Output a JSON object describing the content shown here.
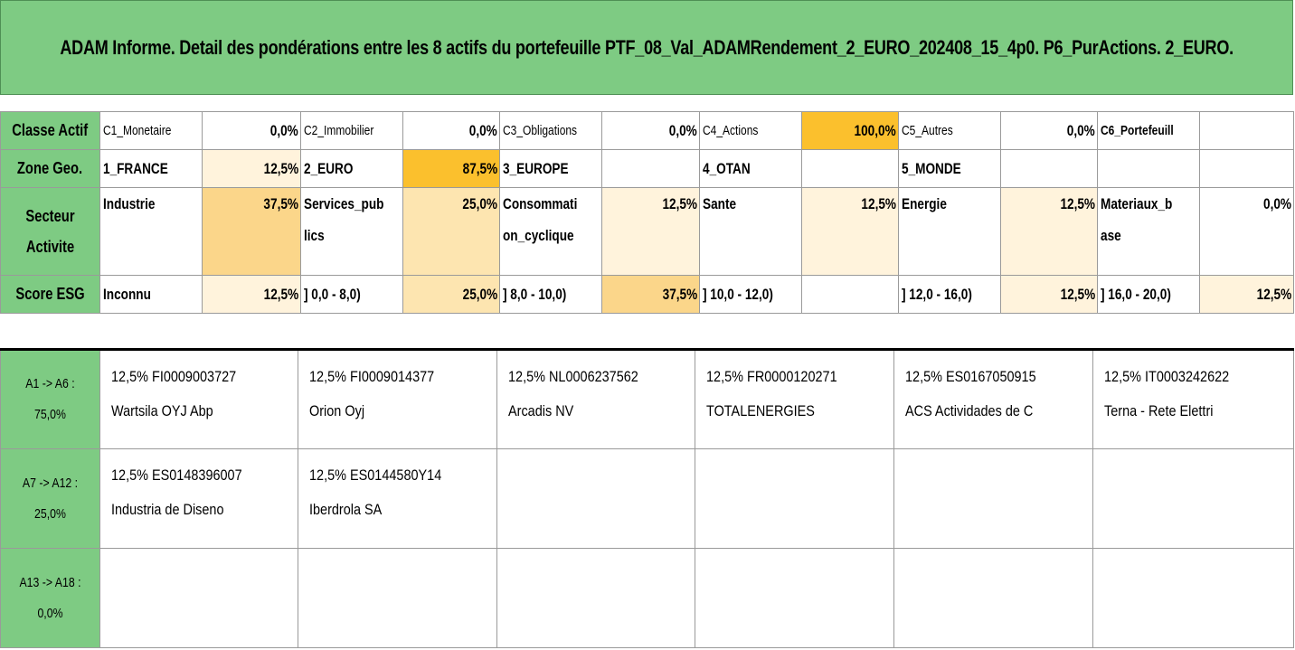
{
  "title": "ADAM Informe. Detail des pondérations entre les 8 actifs du portefeuille PTF_08_Val_ADAMRendement_2_EURO_202408_15_4p0. P6_PurActions. 2_EURO.",
  "classe": {
    "header": "Classe Actif",
    "cells": [
      {
        "label": "C1_Monetaire",
        "value": "0,0%"
      },
      {
        "label": "C2_Immobilier",
        "value": "0,0%"
      },
      {
        "label": "C3_Obligations",
        "value": "0,0%"
      },
      {
        "label": "C4_Actions",
        "value": "100,0%"
      },
      {
        "label": "C5_Autres",
        "value": "0,0%"
      },
      {
        "label": "C6_Portefeuill",
        "value": ""
      }
    ]
  },
  "zone": {
    "header": "Zone Geo.",
    "cells": [
      {
        "label": "1_FRANCE",
        "value": "12,5%"
      },
      {
        "label": "2_EURO",
        "value": "87,5%"
      },
      {
        "label": "3_EUROPE",
        "value": ""
      },
      {
        "label": "4_OTAN",
        "value": ""
      },
      {
        "label": "5_MONDE",
        "value": ""
      },
      {
        "label": "",
        "value": ""
      }
    ]
  },
  "secteur": {
    "header_line1": "Secteur",
    "header_line2": "Activite",
    "cells": [
      {
        "label1": "Industrie",
        "label2": "",
        "value": "37,5%"
      },
      {
        "label1": "Services_pub",
        "label2": "lics",
        "value": "25,0%"
      },
      {
        "label1": "Consommati",
        "label2": "on_cyclique",
        "value": "12,5%"
      },
      {
        "label1": "Sante",
        "label2": "",
        "value": "12,5%"
      },
      {
        "label1": "Energie",
        "label2": "",
        "value": "12,5%"
      },
      {
        "label1": "Materiaux_b",
        "label2": "ase",
        "value": "0,0%"
      }
    ]
  },
  "esg": {
    "header": "Score ESG",
    "cells": [
      {
        "label": "Inconnu",
        "value": "12,5%"
      },
      {
        "label": "] 0,0 - 8,0)",
        "value": "25,0%"
      },
      {
        "label": "] 8,0 - 10,0)",
        "value": "37,5%"
      },
      {
        "label": "] 10,0 - 12,0)",
        "value": ""
      },
      {
        "label": "] 12,0 - 16,0)",
        "value": "12,5%"
      },
      {
        "label": "] 16,0 - 20,0)",
        "value": "12,5%"
      }
    ]
  },
  "assets": [
    {
      "header_line1": "A1 -> A6 :",
      "header_line2": "75,0%",
      "items": [
        {
          "line1": "12,5% FI0009003727",
          "line2": "Wartsila OYJ Abp"
        },
        {
          "line1": "12,5% FI0009014377",
          "line2": "Orion Oyj"
        },
        {
          "line1": "12,5% NL0006237562",
          "line2": "Arcadis NV"
        },
        {
          "line1": "12,5% FR0000120271",
          "line2": "TOTALENERGIES"
        },
        {
          "line1": "12,5% ES0167050915",
          "line2": "ACS Actividades de C"
        },
        {
          "line1": "12,5% IT0003242622",
          "line2": "Terna - Rete Elettri"
        }
      ]
    },
    {
      "header_line1": "A7 -> A12 :",
      "header_line2": "25,0%",
      "items": [
        {
          "line1": "12,5% ES0148396007",
          "line2": "Industria de Diseno"
        },
        {
          "line1": "12,5% ES0144580Y14",
          "line2": "Iberdrola SA"
        },
        {
          "line1": "",
          "line2": ""
        },
        {
          "line1": "",
          "line2": ""
        },
        {
          "line1": "",
          "line2": ""
        },
        {
          "line1": "",
          "line2": ""
        }
      ]
    },
    {
      "header_line1": "A13 -> A18 :",
      "header_line2": "0,0%",
      "items": [
        {
          "line1": "",
          "line2": ""
        },
        {
          "line1": "",
          "line2": ""
        },
        {
          "line1": "",
          "line2": ""
        },
        {
          "line1": "",
          "line2": ""
        },
        {
          "line1": "",
          "line2": ""
        },
        {
          "line1": "",
          "line2": ""
        }
      ]
    }
  ],
  "colors": {
    "green": "#7ecb83",
    "full": "#fbc02d",
    "strong": "#fbd68a",
    "mid": "#fde5b0",
    "light": "#fff3dc"
  }
}
